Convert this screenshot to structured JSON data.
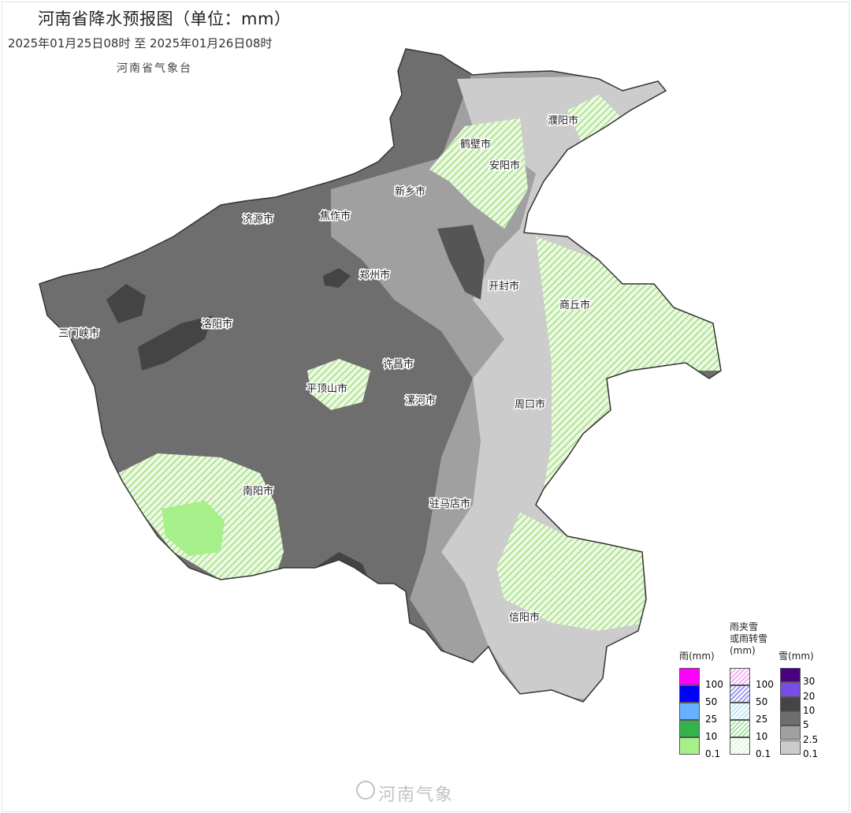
{
  "header": {
    "title": "河南省降水预报图（单位：mm）",
    "period": "2025年01月25日08时  至  2025年01月26日08时",
    "issuer": "河南省气象台"
  },
  "cities": [
    "濮阳市",
    "鹤壁市",
    "安阳市",
    "新乡市",
    "济源市",
    "焦作市",
    "郑州市",
    "开封市",
    "商丘市",
    "三门峡市",
    "洛阳市",
    "许昌市",
    "平顶山市",
    "漯河市",
    "周口市",
    "南阳市",
    "驻马店市",
    "信阳市"
  ],
  "legend": {
    "rain": {
      "title": "雨(mm)",
      "levels": [
        "100",
        "50",
        "25",
        "10",
        "0.1"
      ],
      "colors": [
        "#ff00ff",
        "#0000ff",
        "#66b0ff",
        "#33b44a",
        "#a6f08c"
      ]
    },
    "sleet": {
      "title_line1": "雨夹雪",
      "title_line2": "或雨转雪",
      "title_line3": "(mm)",
      "levels": [
        "100",
        "50",
        "25",
        "10",
        "0.1"
      ],
      "colors": [
        "#f0b4f0",
        "#9c9cf0",
        "#c4e6f6",
        "#a8e0a8",
        "#e0f6e0"
      ]
    },
    "snow": {
      "title": "雪(mm)",
      "levels": [
        "30",
        "20",
        "10",
        "5",
        "2.5",
        "0.1"
      ],
      "colors": [
        "#4b0080",
        "#7a4ce6",
        "#444444",
        "#6e6e6e",
        "#a0a0a0",
        "#cccccc"
      ]
    }
  },
  "watermark": "河南气象"
}
